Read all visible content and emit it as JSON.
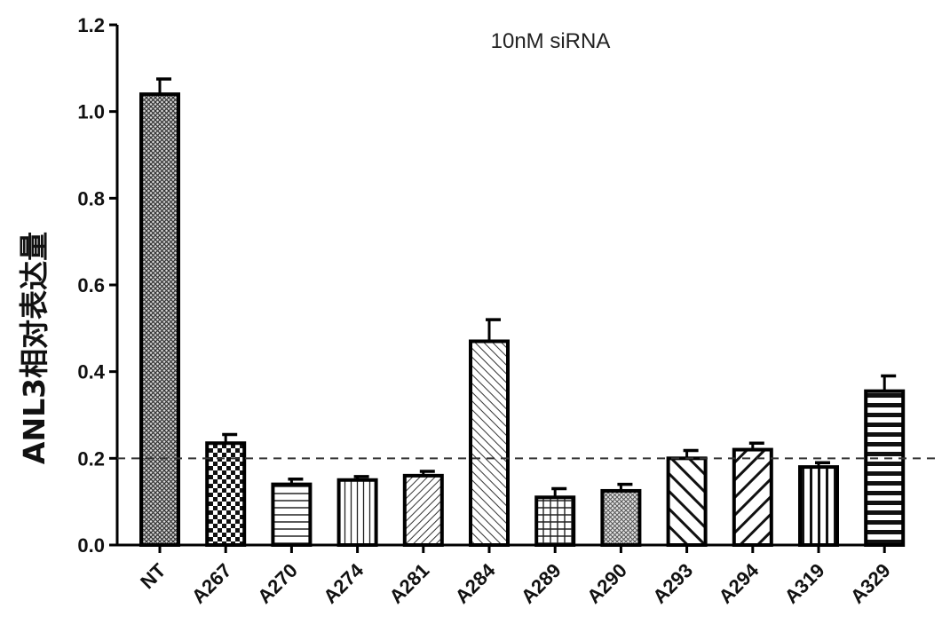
{
  "chart_data": {
    "type": "bar",
    "title": "",
    "annotation": "10nM siRNA",
    "xlabel": "",
    "ylabel": "ANL3相对表达量",
    "ylim": [
      0,
      1.2
    ],
    "yticks": [
      "0.0",
      "0.2",
      "0.4",
      "0.6",
      "0.8",
      "1.0",
      "1.2"
    ],
    "reference_line": 0.2,
    "categories": [
      "NT",
      "A267",
      "A270",
      "A274",
      "A281",
      "A284",
      "A289",
      "A290",
      "A293",
      "A294",
      "A319",
      "A329"
    ],
    "values": [
      1.04,
      0.235,
      0.14,
      0.15,
      0.16,
      0.47,
      0.11,
      0.125,
      0.2,
      0.22,
      0.18,
      0.355
    ],
    "errors": [
      0.035,
      0.02,
      0.012,
      0.008,
      0.01,
      0.05,
      0.02,
      0.015,
      0.018,
      0.015,
      0.01,
      0.035
    ],
    "patterns": [
      "dense-crosshatch",
      "checker",
      "horizontal-lines",
      "vertical-lines",
      "diagonal-right-fine",
      "diagonal-right",
      "grid",
      "dense-dots",
      "diagonal-left-bold",
      "diagonal-right-bold",
      "vertical-lines-bold",
      "horizontal-lines-bold"
    ],
    "grid": false,
    "legend": "none",
    "colors": {
      "bar_stroke": "#000000",
      "axis": "#000000",
      "reference_line": "#333333"
    }
  }
}
